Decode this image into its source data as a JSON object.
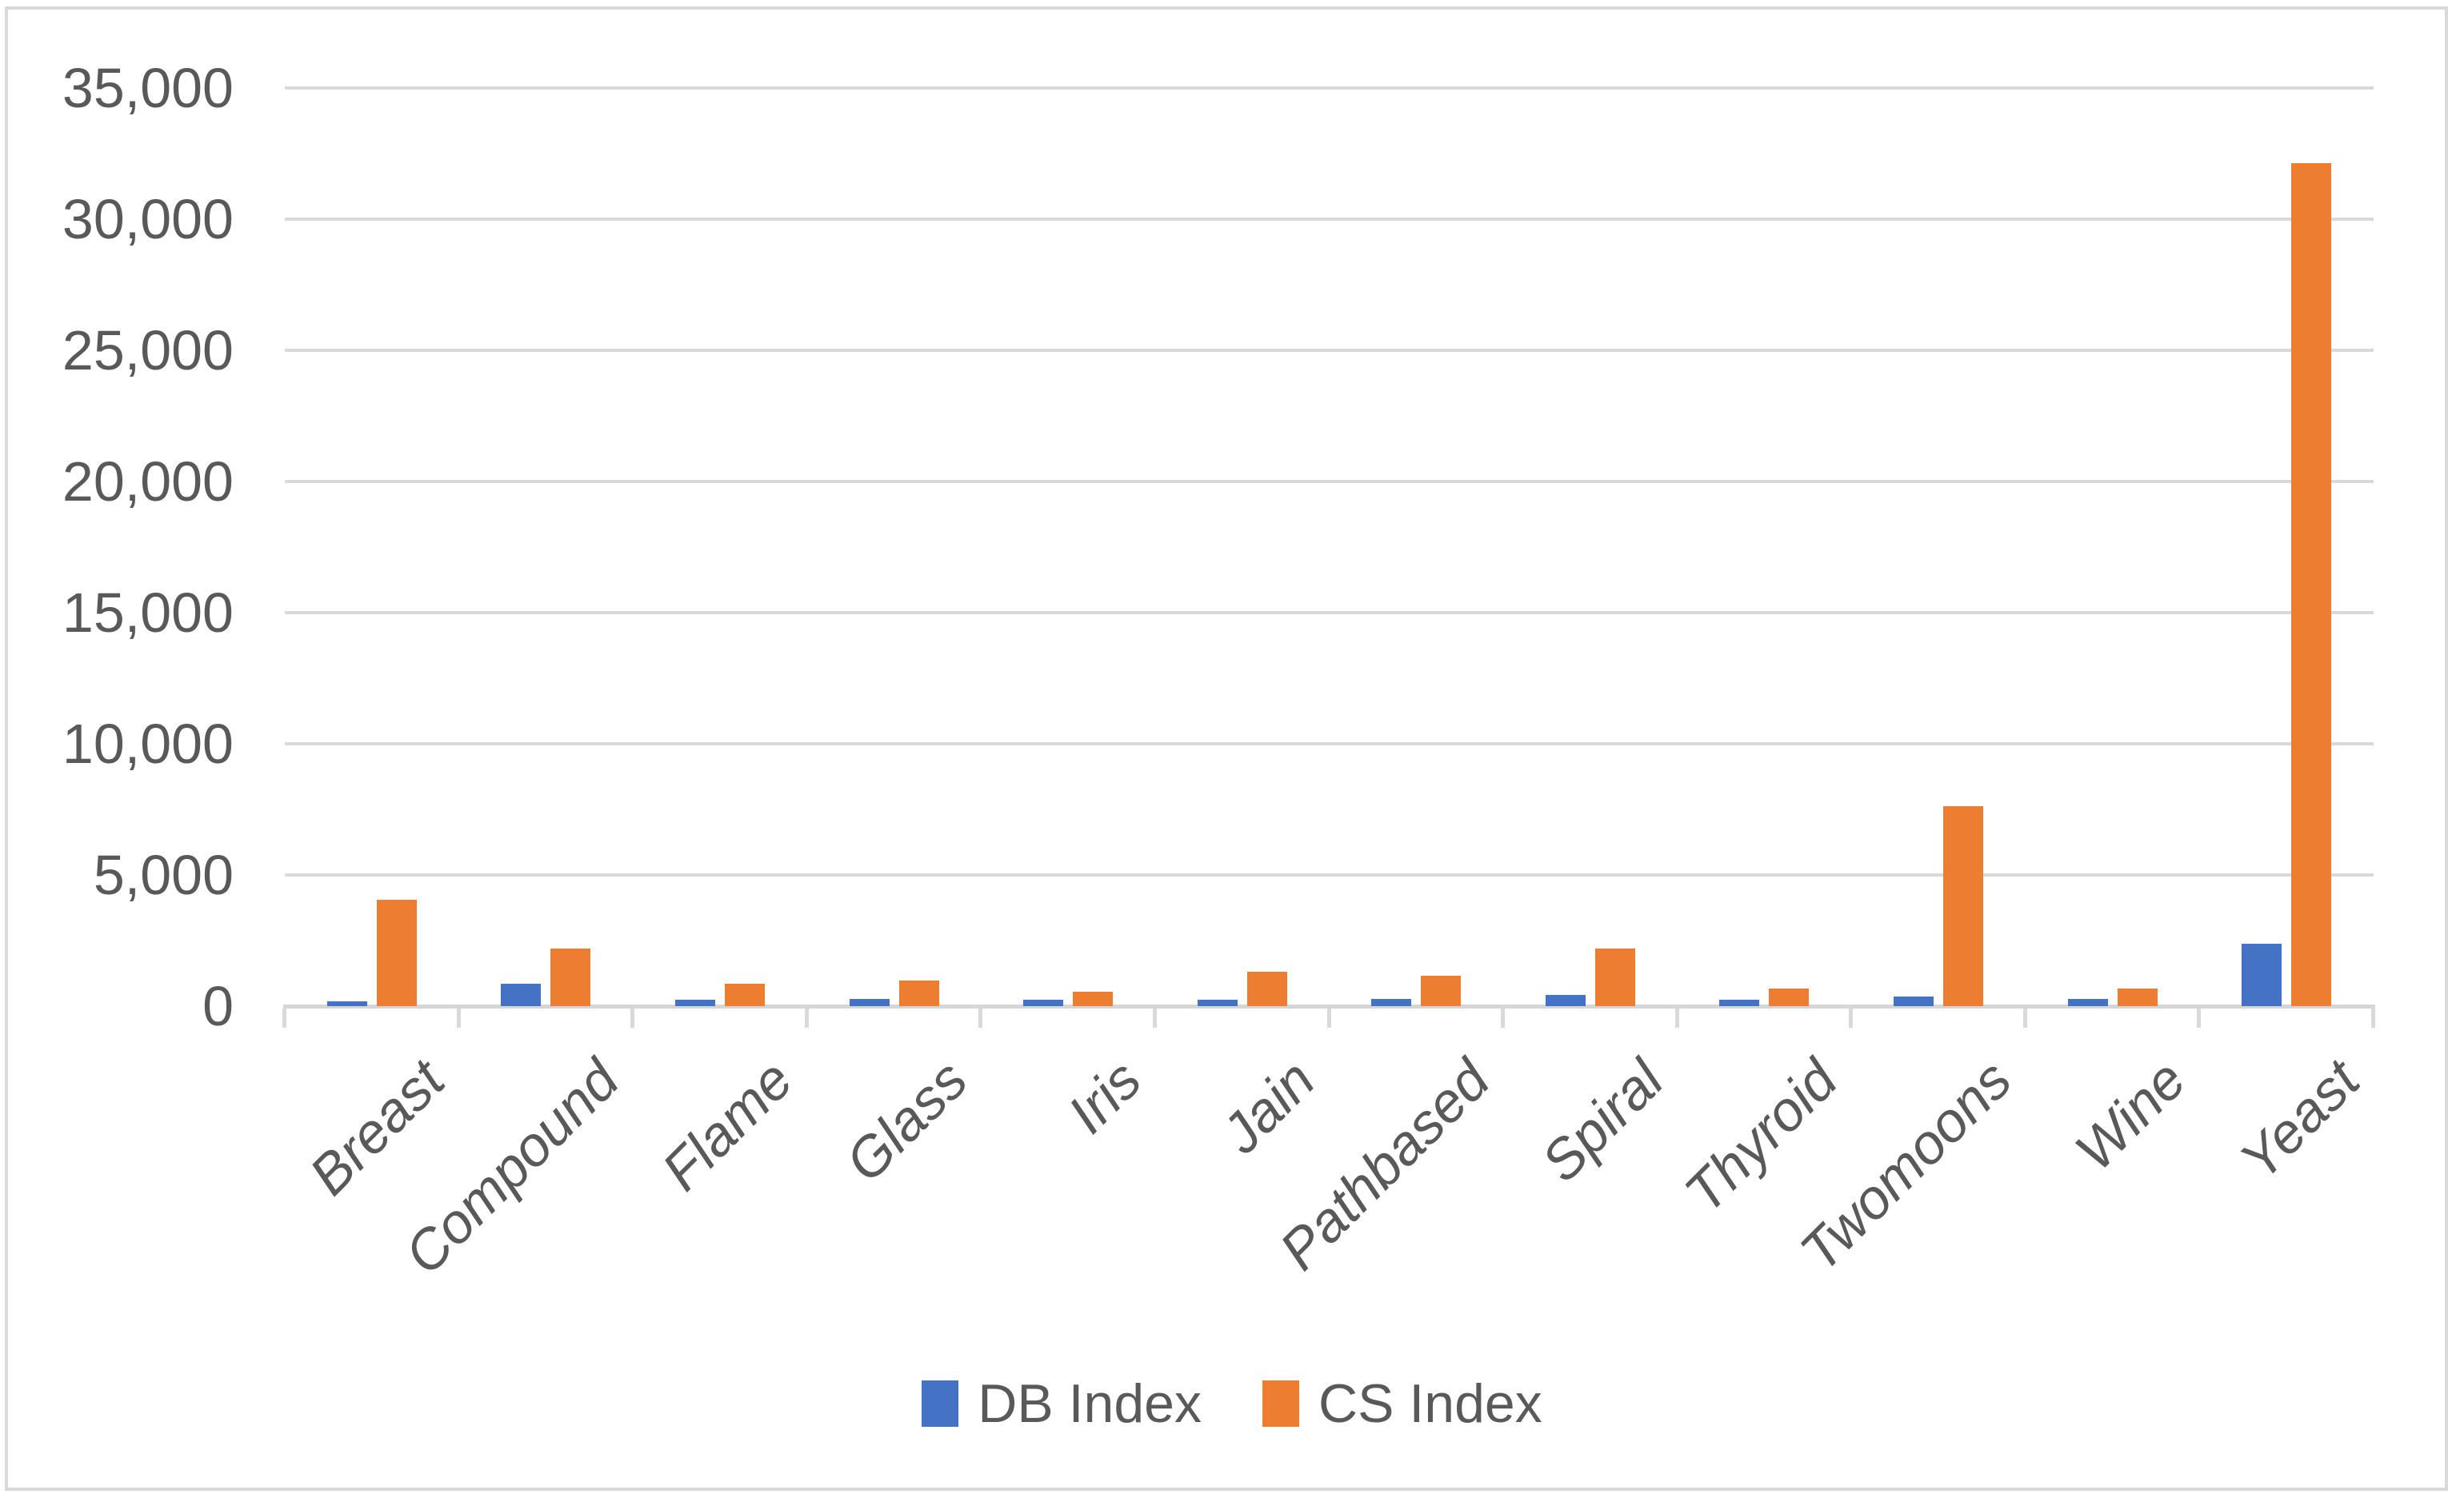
{
  "chart_data": {
    "type": "bar",
    "title": "",
    "categories": [
      "Breast",
      "Compound",
      "Flame",
      "Glass",
      "Iris",
      "Jain",
      "Pathbased",
      "Spiral",
      "Thyroid",
      "Twomoons",
      "Wine",
      "Yeast"
    ],
    "series": [
      {
        "name": "DB Index",
        "color": "#4472C4",
        "values": [
          180,
          850,
          240,
          275,
          245,
          245,
          275,
          430,
          245,
          370,
          275,
          2380
        ]
      },
      {
        "name": "CS Index",
        "color": "#ED7D31",
        "values": [
          4060,
          2200,
          860,
          980,
          550,
          1310,
          1160,
          2200,
          670,
          7620,
          670,
          32130
        ]
      }
    ],
    "ylim": [
      0,
      35000
    ],
    "ytick_step": 5000,
    "ytick_labels": [
      "0",
      "5,000",
      "10,000",
      "15,000",
      "20,000",
      "25,000",
      "30,000",
      "35,000"
    ],
    "xlabel": "",
    "ylabel": "",
    "grid": true,
    "legend_position": "bottom",
    "x_label_rotation": -45
  },
  "colors": {
    "background": "#FFFFFF",
    "border": "#D9D9D9",
    "gridline": "#D9D9D9",
    "axis_line": "#D6D6D6",
    "axis_text": "#595959"
  },
  "legend": {
    "items": [
      {
        "label": "DB Index",
        "swatch_color": "#4472C4"
      },
      {
        "label": "CS Index",
        "swatch_color": "#ED7D31"
      }
    ]
  }
}
